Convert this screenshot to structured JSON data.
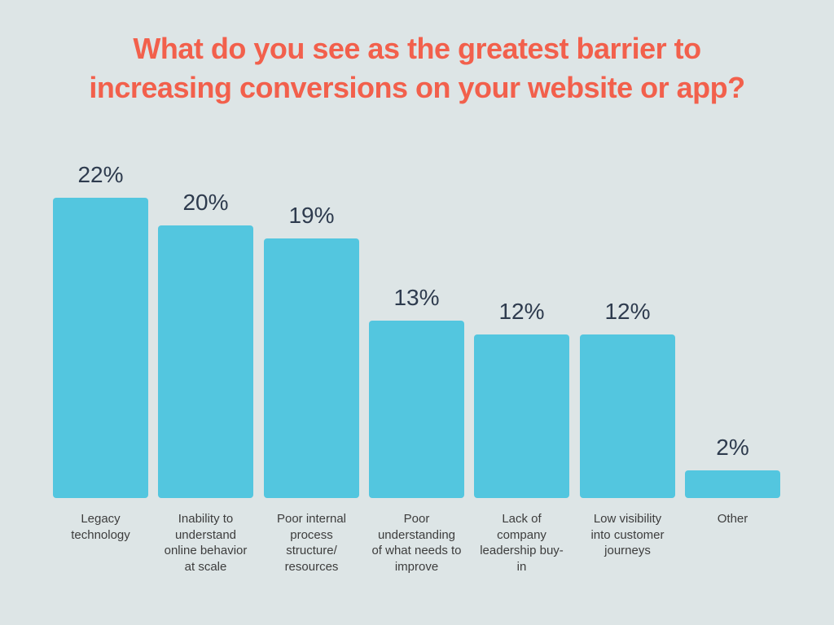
{
  "page": {
    "background_color": "#dde5e6"
  },
  "chart_data": {
    "type": "bar",
    "title": "What do you see as the greatest barrier to\nincreasing conversions on your website or app?",
    "xlabel": "",
    "ylabel": "",
    "unit": "%",
    "grid": false,
    "legend_position": "none",
    "ylim": [
      0,
      24
    ],
    "categories": [
      "Legacy technology",
      "Inability to understand online behavior at scale",
      "Poor internal process structure/ resources",
      "Poor understanding of what needs to improve",
      "Lack of company leadership buy-in",
      "Low visibility into customer journeys",
      "Other"
    ],
    "category_display_lines": [
      "Legacy\ntechnology",
      "Inability to\nunderstand\nonline behavior\nat scale",
      "Poor internal\nprocess\nstructure/\nresources",
      "Poor\nunderstanding\nof what needs to\nimprove",
      "Lack of\ncompany\nleadership buy-\nin",
      "Low visibility\ninto customer\njourneys",
      "Other"
    ],
    "values": [
      22,
      20,
      19,
      13,
      12,
      12,
      2
    ],
    "value_labels": [
      "22%",
      "20%",
      "19%",
      "13%",
      "12%",
      "12%",
      "2%"
    ],
    "colors": {
      "bar": "#53c6df",
      "title": "#f2604c",
      "value_label": "#2e3b4e",
      "category_label": "#3d3d3d"
    }
  }
}
